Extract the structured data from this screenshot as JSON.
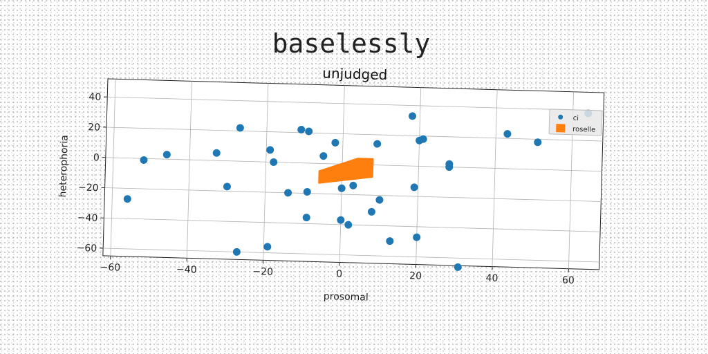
{
  "figure": {
    "suptitle": "baselessly"
  },
  "chart_data": {
    "type": "scatter",
    "title": "unjudged",
    "xlabel": "prosomal",
    "ylabel": "heterophoria",
    "xlim": [
      -62,
      68
    ],
    "ylim": [
      -65,
      52
    ],
    "xticks": [
      -60,
      -40,
      -20,
      0,
      20,
      40,
      60
    ],
    "yticks": [
      -60,
      -40,
      -20,
      0,
      20,
      40
    ],
    "grid": true,
    "legend_position": "top-right",
    "colors": {
      "series1": "#1f77b4",
      "series2": "#ff7f0e"
    },
    "series": [
      {
        "name": "ci",
        "kind": "points",
        "points": [
          [
            -56,
            -27
          ],
          [
            -52,
            -1
          ],
          [
            -46,
            3
          ],
          [
            -33,
            5
          ],
          [
            -30,
            -17
          ],
          [
            -27,
            22
          ],
          [
            -27,
            -60
          ],
          [
            -19,
            8
          ],
          [
            -18,
            0
          ],
          [
            -19,
            -56
          ],
          [
            -14,
            -20
          ],
          [
            -11,
            22
          ],
          [
            -9,
            21
          ],
          [
            -9,
            -19
          ],
          [
            -9,
            -36
          ],
          [
            -5,
            5
          ],
          [
            -2,
            14
          ],
          [
            0,
            -16
          ],
          [
            0,
            -37
          ],
          [
            2,
            -40
          ],
          [
            3,
            -14
          ],
          [
            8,
            -31
          ],
          [
            9,
            14
          ],
          [
            10,
            -23
          ],
          [
            13,
            -50
          ],
          [
            18,
            33
          ],
          [
            19,
            -14
          ],
          [
            20,
            17
          ],
          [
            21,
            18
          ],
          [
            20,
            -47
          ],
          [
            28,
            0
          ],
          [
            28,
            2
          ],
          [
            31,
            -66
          ],
          [
            43,
            23
          ],
          [
            51,
            18
          ],
          [
            64,
            38
          ]
        ]
      },
      {
        "name": "roselle",
        "kind": "region",
        "polygon": [
          [
            -6,
            -5
          ],
          [
            4,
            4
          ],
          [
            8,
            4
          ],
          [
            8,
            -8
          ],
          [
            -6,
            -13
          ]
        ]
      }
    ]
  }
}
